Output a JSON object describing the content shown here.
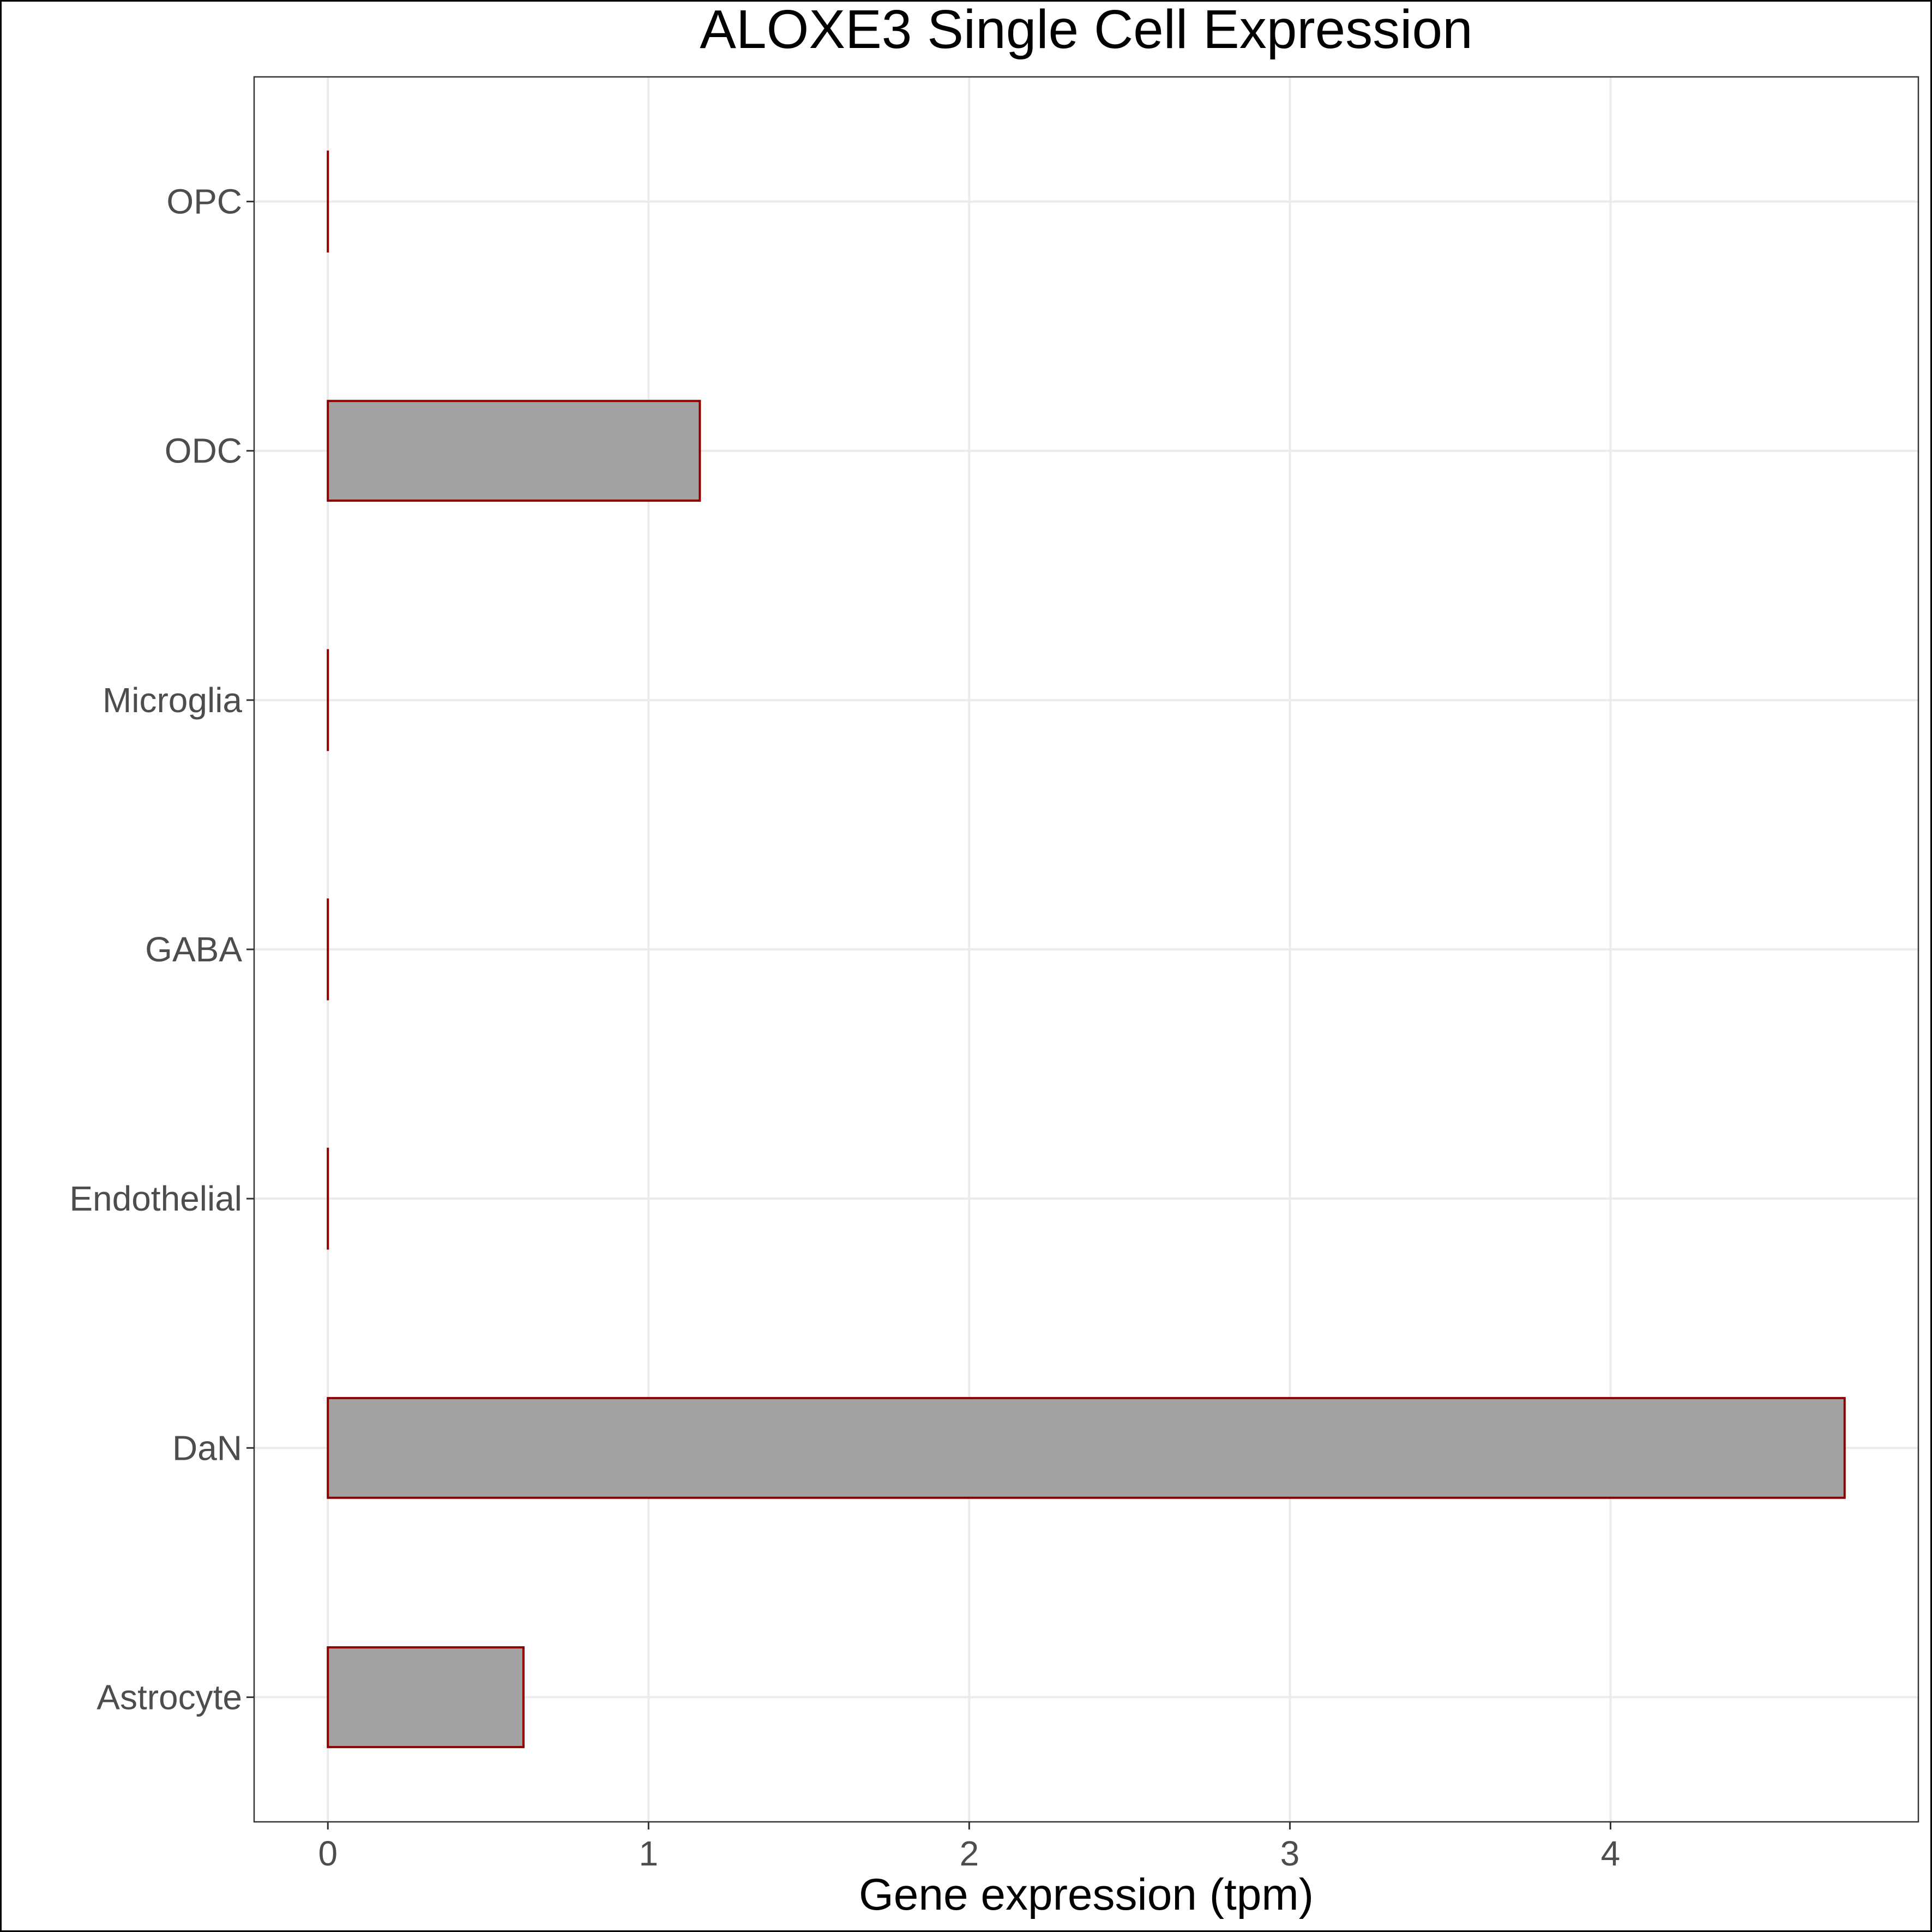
{
  "chart_data": {
    "type": "bar",
    "orientation": "horizontal",
    "title": "ALOXE3 Single Cell Expression",
    "xlabel": "Gene expression (tpm)",
    "ylabel": "",
    "categories": [
      "Astrocyte",
      "DaN",
      "Endothelial",
      "GABA",
      "Microglia",
      "ODC",
      "OPC"
    ],
    "values": [
      0.61,
      4.73,
      0.0,
      0.0,
      0.0,
      1.16,
      0.0
    ],
    "xlim": [
      -0.23,
      4.96
    ],
    "xticks": [
      0,
      1,
      2,
      3,
      4
    ],
    "grid": true,
    "legend": "none",
    "colors": {
      "bar_fill": "#a3a3a3",
      "bar_stroke": "#8b0000",
      "grid": "#ebebeb",
      "panel_border": "#333333",
      "tick_text": "#4d4d4d",
      "title_text": "#000000"
    }
  }
}
